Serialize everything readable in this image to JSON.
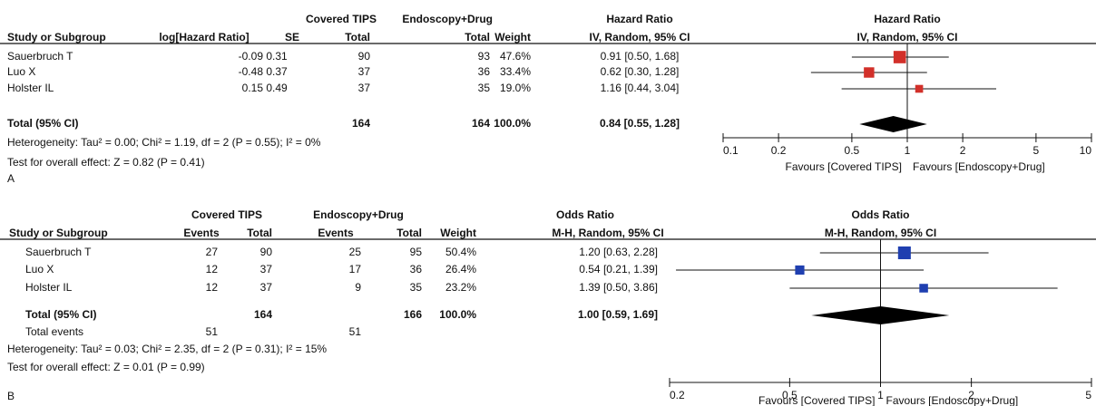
{
  "panels": [
    {
      "label": "A",
      "header_groups": [
        "Covered TIPS",
        "Endoscopy+Drug",
        "Hazard Ratio"
      ],
      "columns": [
        "Study or Subgroup",
        "log[Hazard Ratio]",
        "SE",
        "Total",
        "Total",
        "Weight",
        "IV, Random, 95% CI"
      ],
      "rows": [
        [
          "Sauerbruch T",
          "-0.09",
          "0.31",
          "90",
          "93",
          "47.6%",
          "0.91 [0.50, 1.68]"
        ],
        [
          "Luo X",
          "-0.48",
          "0.37",
          "37",
          "36",
          "33.4%",
          "0.62 [0.30, 1.28]"
        ],
        [
          "Holster IL",
          "0.15",
          "0.49",
          "37",
          "35",
          "19.0%",
          "1.16 [0.44, 3.04]"
        ]
      ],
      "total": {
        "label": "Total (95% CI)",
        "cells": [
          "164",
          "164",
          "100.0%",
          "0.84 [0.55, 1.28]"
        ]
      },
      "notes": [
        "Heterogeneity: Tau² = 0.00; Chi² = 1.19, df = 2 (P = 0.55); I² = 0%",
        "Test for overall effect: Z = 0.82 (P = 0.41)"
      ],
      "plot": {
        "title": "Hazard Ratio",
        "subtitle": "IV, Random, 95% CI",
        "log": true,
        "color": "#d2302a",
        "xlim": [
          0.1,
          10
        ],
        "xticks": [
          0.1,
          0.2,
          0.5,
          1,
          2,
          5,
          10
        ],
        "studies": [
          {
            "estimate": 0.91,
            "lower": 0.5,
            "upper": 1.68,
            "weight": 47.6
          },
          {
            "estimate": 0.62,
            "lower": 0.3,
            "upper": 1.28,
            "weight": 33.4
          },
          {
            "estimate": 1.16,
            "lower": 0.44,
            "upper": 3.04,
            "weight": 19.0
          }
        ],
        "total": {
          "estimate": 0.84,
          "lower": 0.55,
          "upper": 1.28
        },
        "favours": [
          "Favours [Covered TIPS]",
          "Favours [Endoscopy+Drug]"
        ]
      }
    },
    {
      "label": "B",
      "header_groups": [
        "Covered TIPS",
        "Endoscopy+Drug",
        "Odds Ratio"
      ],
      "columns": [
        "Study or Subgroup",
        "Events",
        "Total",
        "Events",
        "Total",
        "Weight",
        "M-H, Random, 95% CI"
      ],
      "rows": [
        [
          "Sauerbruch T",
          "27",
          "90",
          "25",
          "95",
          "50.4%",
          "1.20 [0.63, 2.28]"
        ],
        [
          "Luo X",
          "12",
          "37",
          "17",
          "36",
          "26.4%",
          "0.54 [0.21, 1.39]"
        ],
        [
          "Holster IL",
          "12",
          "37",
          "9",
          "35",
          "23.2%",
          "1.39 [0.50, 3.86]"
        ]
      ],
      "total": {
        "label": "Total (95% CI)",
        "cells": [
          "164",
          "166",
          "100.0%",
          "1.00 [0.59, 1.69]"
        ]
      },
      "total_events": {
        "label": "Total events",
        "cells": [
          "51",
          "51"
        ]
      },
      "notes": [
        "Heterogeneity: Tau² = 0.03; Chi² = 2.35, df = 2 (P = 0.31); I² = 15%",
        "Test for overall effect: Z = 0.01 (P = 0.99)"
      ],
      "plot": {
        "title": "Odds Ratio",
        "subtitle": "M-H, Random, 95% CI",
        "log": true,
        "color": "#1f3fb0",
        "xlim": [
          0.2,
          5
        ],
        "xticks": [
          0.2,
          0.5,
          1,
          2,
          5
        ],
        "studies": [
          {
            "estimate": 1.2,
            "lower": 0.63,
            "upper": 2.28,
            "weight": 50.4
          },
          {
            "estimate": 0.54,
            "lower": 0.21,
            "upper": 1.39,
            "weight": 26.4
          },
          {
            "estimate": 1.39,
            "lower": 0.5,
            "upper": 3.86,
            "weight": 23.2
          }
        ],
        "total": {
          "estimate": 1.0,
          "lower": 0.59,
          "upper": 1.69
        },
        "favours": [
          "Favours [Covered TIPS]",
          "Favours [Endoscopy+Drug]"
        ]
      }
    }
  ]
}
